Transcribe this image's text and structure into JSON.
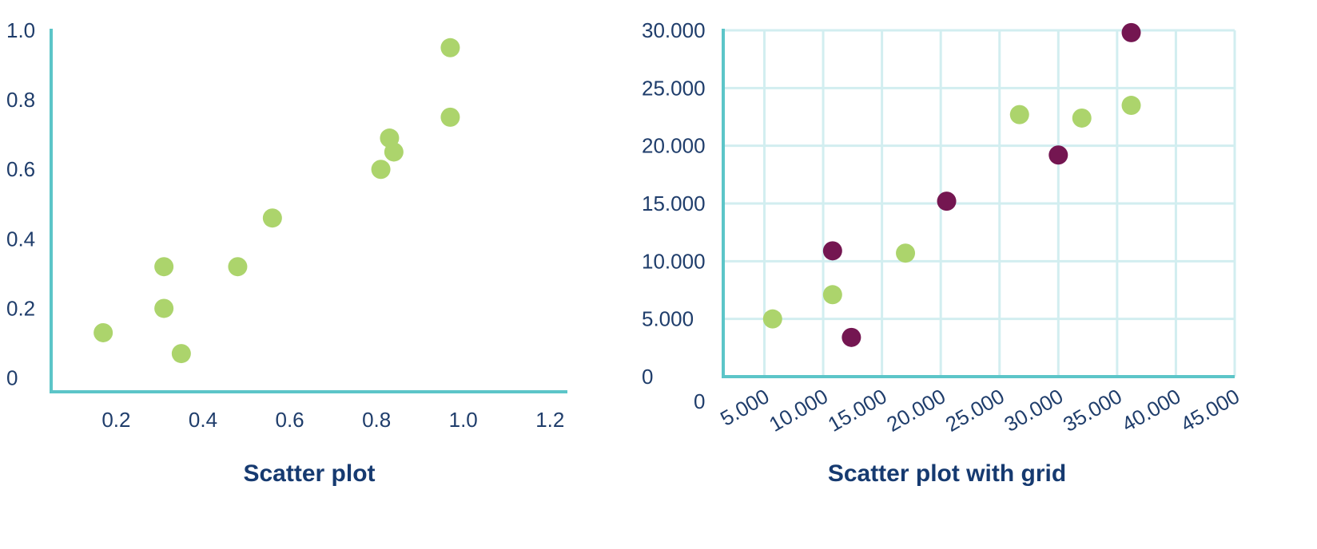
{
  "colors": {
    "axis": "#5cc5c8",
    "grid": "#d2eef0",
    "tick_text": "#1f3d6b",
    "caption_text": "#163a70",
    "green": "#acd46c",
    "purple": "#741651"
  },
  "chart_data": [
    {
      "type": "scatter",
      "caption": "Scatter plot",
      "grid": false,
      "xlim": [
        0.05,
        1.24
      ],
      "ylim": [
        -0.04,
        1.0
      ],
      "x_ticks": [
        0.2,
        0.4,
        0.6,
        0.8,
        1.0,
        1.2
      ],
      "x_tick_labels": [
        "0.2",
        "0.4",
        "0.6",
        "0.8",
        "1.0",
        "1.2"
      ],
      "y_ticks": [
        0,
        0.2,
        0.4,
        0.6,
        0.8,
        1.0
      ],
      "y_tick_labels": [
        "0",
        "0.2",
        "0.4",
        "0.6",
        "0.8",
        "1.0"
      ],
      "series": [
        {
          "color": "green",
          "points": [
            [
              0.17,
              0.13
            ],
            [
              0.31,
              0.2
            ],
            [
              0.31,
              0.32
            ],
            [
              0.35,
              0.07
            ],
            [
              0.48,
              0.32
            ],
            [
              0.56,
              0.46
            ],
            [
              0.81,
              0.6
            ],
            [
              0.83,
              0.69
            ],
            [
              0.84,
              0.65
            ],
            [
              0.97,
              0.75
            ],
            [
              0.97,
              0.95
            ]
          ]
        }
      ]
    },
    {
      "type": "scatter",
      "caption": "Scatter plot with grid",
      "grid": true,
      "xlim": [
        1500,
        45000
      ],
      "ylim": [
        0,
        30000
      ],
      "x_ticks": [
        5000,
        10000,
        15000,
        20000,
        25000,
        30000,
        35000,
        40000,
        45000
      ],
      "x_tick_labels": [
        "5.000",
        "10.000",
        "15.000",
        "20.000",
        "25.000",
        "30.000",
        "35.000",
        "40.000",
        "45.000"
      ],
      "x_origin_label": "0",
      "y_ticks": [
        0,
        5000,
        10000,
        15000,
        20000,
        25000,
        30000
      ],
      "y_tick_labels": [
        "0",
        "5.000",
        "10.000",
        "15.000",
        "20.000",
        "25.000",
        "30.000"
      ],
      "series": [
        {
          "color": "green",
          "points": [
            [
              5700,
              5000
            ],
            [
              10800,
              7100
            ],
            [
              17000,
              10700
            ],
            [
              26700,
              22700
            ],
            [
              32000,
              22400
            ],
            [
              36200,
              23500
            ]
          ]
        },
        {
          "color": "purple",
          "points": [
            [
              10800,
              10900
            ],
            [
              12400,
              3400
            ],
            [
              20500,
              15200
            ],
            [
              30000,
              19200
            ],
            [
              36200,
              29800
            ]
          ]
        }
      ]
    }
  ]
}
